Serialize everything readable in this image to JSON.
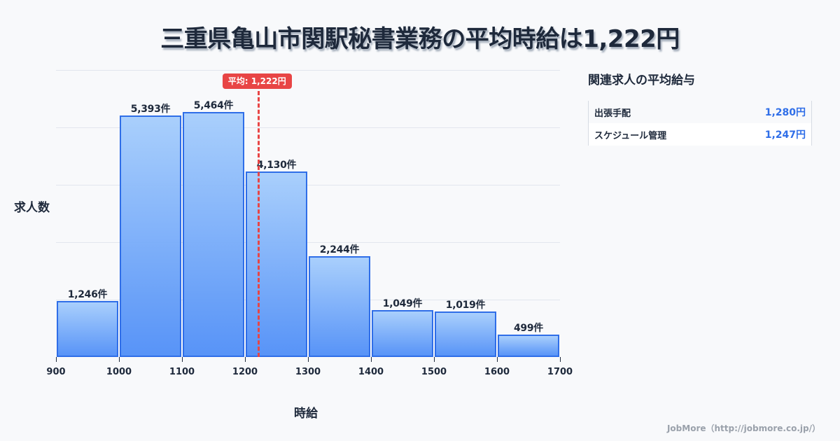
{
  "title": "三重県亀山市関駅秘書業務の平均時給は1,222円",
  "chart_data": {
    "type": "bar",
    "title": "三重県亀山市関駅秘書業務の平均時給は1,222円",
    "xlabel": "時給",
    "ylabel": "求人数",
    "x_ticks": [
      "900",
      "1000",
      "1100",
      "1200",
      "1300",
      "1400",
      "1500",
      "1600",
      "1700"
    ],
    "categories": [
      "900-1000",
      "1000-1100",
      "1100-1200",
      "1200-1300",
      "1300-1400",
      "1400-1500",
      "1500-1600",
      "1600-1700"
    ],
    "values": [
      1246,
      5393,
      5464,
      4130,
      2244,
      1049,
      1019,
      499
    ],
    "value_labels": [
      "1,246件",
      "5,393件",
      "5,464件",
      "4,130件",
      "2,244件",
      "1,049件",
      "1,019件",
      "499件"
    ],
    "xlim": [
      900,
      1700
    ],
    "ylim": [
      0,
      6400
    ],
    "grid": true,
    "annotations": [
      {
        "type": "vline",
        "x": 1222,
        "label": "平均: 1,222円",
        "color": "#e84545",
        "style": "dashed"
      }
    ],
    "colors": {
      "bar_top": "#a5cdfc",
      "bar_bottom": "#4f8ef7",
      "bar_border": "#2f6ee8",
      "avg": "#e84545"
    }
  },
  "average_badge": "平均: 1,222円",
  "axis": {
    "xlabel": "時給",
    "ylabel": "求人数"
  },
  "sidebar": {
    "title": "関連求人の平均給与",
    "items": [
      {
        "name": "出張手配",
        "value": "1,280円"
      },
      {
        "name": "スケジュール管理",
        "value": "1,247円"
      }
    ]
  },
  "footer": "JobMore（http://jobmore.co.jp/）"
}
